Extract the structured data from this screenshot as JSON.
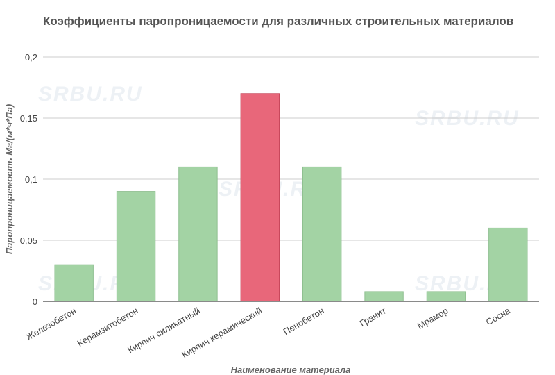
{
  "chart_data": {
    "type": "bar",
    "title": "Коэффициенты паропроницаемости для различных строительных материалов",
    "xlabel": "Наименование материала",
    "ylabel": "Паропроницаемость Мг/(м*ч*Па)",
    "categories": [
      "Железобетон",
      "Керамзитобетон",
      "Кирпич силикатный",
      "Кирпич керамический",
      "Пенобетон",
      "Гранит",
      "Мрамор",
      "Сосна"
    ],
    "values": [
      0.03,
      0.09,
      0.11,
      0.17,
      0.11,
      0.008,
      0.008,
      0.06
    ],
    "highlight_index": 3,
    "ylim": [
      0,
      0.2
    ],
    "yticks": [
      "0",
      "0,05",
      "0,1",
      "0,15",
      "0,2"
    ],
    "ytick_values": [
      0,
      0.05,
      0.1,
      0.15,
      0.2
    ],
    "grid": true,
    "colors": {
      "bar": "#a3d3a4",
      "bar_stroke": "#8fbf90",
      "highlight": "#e8677a",
      "highlight_stroke": "#c7485c",
      "grid": "#cccccc",
      "axis": "#444444"
    }
  },
  "watermark": "SRBU.RU"
}
